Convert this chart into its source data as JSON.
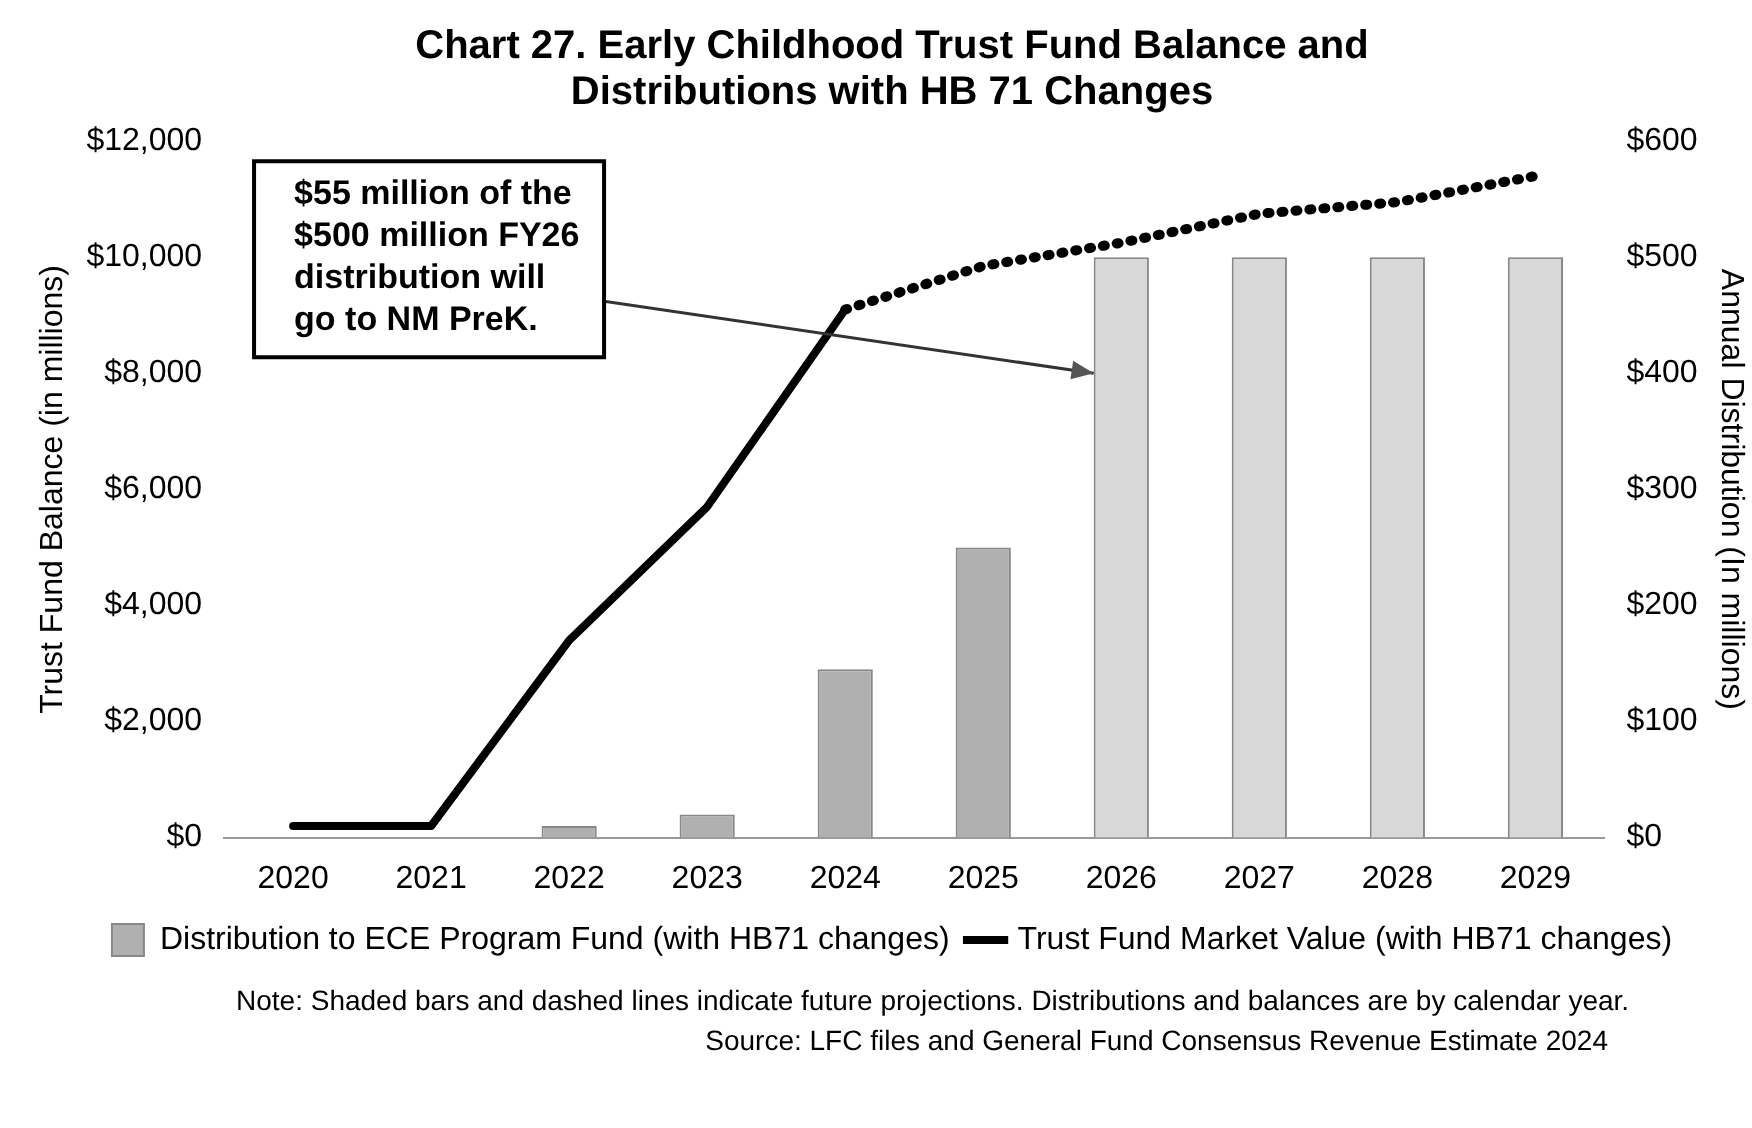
{
  "chart_data": {
    "type": "bar",
    "title": "Chart 27. Early Childhood Trust Fund Balance and Distributions with HB 71 Changes",
    "ylabel": "Trust Fund Balance (in millions)",
    "y2label": "Annual Distribution (In millions)",
    "categories": [
      "2020",
      "2021",
      "2022",
      "2023",
      "2024",
      "2025",
      "2026",
      "2027",
      "2028",
      "2029"
    ],
    "series": [
      {
        "name": "Distribution to ECE Program Fund (with HB71 changes)",
        "axis": "y2",
        "color": "#b0b0b0",
        "colors": [
          "#b0b0b0",
          "#b0b0b0",
          "#b0b0b0",
          "#b0b0b0",
          "#b0b0b0",
          "#b0b0b0",
          "#d8d8d8",
          "#d8d8d8",
          "#d8d8d8",
          "#d8d8d8"
        ],
        "values": [
          0,
          0,
          10,
          20,
          145,
          250,
          500,
          500,
          500,
          500
        ]
      },
      {
        "name": "Trust Fund Market Value (with HB71 changes)",
        "type": "line",
        "color": "#000000",
        "line_style": "solid",
        "values": [
          200,
          200,
          3400,
          5700,
          9100,
          null,
          null,
          null,
          null,
          null
        ]
      },
      {
        "type": "line",
        "color": "#000000",
        "line_style": "dotted",
        "values": [
          null,
          null,
          null,
          null,
          9100,
          9850,
          10250,
          10750,
          10950,
          11400
        ]
      }
    ],
    "ylim": [
      0,
      12000
    ],
    "yticks": [
      {
        "value": 0,
        "label": "$0"
      },
      {
        "value": 2000,
        "label": "$2,000"
      },
      {
        "value": 4000,
        "label": "$4,000"
      },
      {
        "value": 6000,
        "label": "$6,000"
      },
      {
        "value": 8000,
        "label": "$8,000"
      },
      {
        "value": 10000,
        "label": "$10,000"
      },
      {
        "value": 12000,
        "label": "$12,000"
      }
    ],
    "y2lim": [
      0,
      600
    ],
    "y2ticks": [
      {
        "value": 0,
        "label": "$0"
      },
      {
        "value": 100,
        "label": "$100"
      },
      {
        "value": 200,
        "label": "$200"
      },
      {
        "value": 300,
        "label": "$300"
      },
      {
        "value": 400,
        "label": "$400"
      },
      {
        "value": 500,
        "label": "$500"
      },
      {
        "value": 600,
        "label": "$600"
      }
    ],
    "grid": false,
    "legend": "bottom",
    "marker": "none",
    "annotations": [
      "$55 million of the $500 million FY26 distribution will go to NM PreK.",
      "Note: Shaded bars and dashed lines indicate future projections. Distributions and balances are by calendar year.",
      "Source: LFC files and General Fund Consensus Revenue Estimate 2024"
    ]
  }
}
